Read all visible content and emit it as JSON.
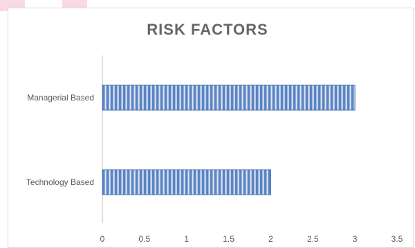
{
  "chart_data": {
    "type": "bar",
    "orientation": "horizontal",
    "title": "RISK FACTORS",
    "categories": [
      "Managerial Based",
      "Technology Based"
    ],
    "values": [
      3,
      2
    ],
    "xlim": [
      0,
      3.5
    ],
    "xticks": [
      "0",
      "0.5",
      "1",
      "1.5",
      "2",
      "2.5",
      "3",
      "3.5"
    ],
    "grid": false,
    "bar_color": "#5b84c4",
    "bar_stripe_color": "#dde6f4"
  }
}
